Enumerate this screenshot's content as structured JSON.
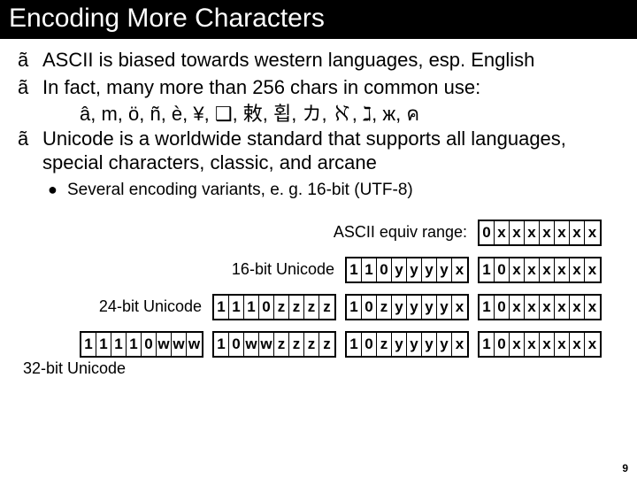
{
  "title": "Encoding More Characters",
  "bullets": {
    "b1": "ASCII is biased towards western languages, esp. English",
    "b2": "In fact, many more than 256 chars in common use:",
    "chars": "â, m, ö, ñ, è, ¥, ❑, 敕, 횝, カ, ℵ, ℷ, ж, ค",
    "b3": "Unicode is a worldwide standard that supports all languages, special characters, classic, and arcane",
    "sub1": "Several encoding variants, e. g. 16-bit (UTF-8)"
  },
  "bullet_glyph": "ã",
  "sub_glyph": "●",
  "labels": {
    "ascii": "ASCII equiv range:",
    "u16": "16-bit Unicode",
    "u24": "24-bit Unicode",
    "u32": "32-bit Unicode"
  },
  "rows": [
    {
      "label_key": "ascii",
      "bytes": [
        [
          "0",
          "x",
          "x",
          "x",
          "x",
          "x",
          "x",
          "x"
        ]
      ]
    },
    {
      "label_key": "u16",
      "bytes": [
        [
          "1",
          "1",
          "0",
          "y",
          "y",
          "y",
          "y",
          "x"
        ],
        [
          "1",
          "0",
          "x",
          "x",
          "x",
          "x",
          "x",
          "x"
        ]
      ]
    },
    {
      "label_key": "u24",
      "bytes": [
        [
          "1",
          "1",
          "1",
          "0",
          "z",
          "z",
          "z",
          "z"
        ],
        [
          "1",
          "0",
          "z",
          "y",
          "y",
          "y",
          "y",
          "x"
        ],
        [
          "1",
          "0",
          "x",
          "x",
          "x",
          "x",
          "x",
          "x"
        ]
      ]
    },
    {
      "label_key": "u32",
      "bytes": [
        [
          "1",
          "1",
          "1",
          "1",
          "0",
          "w",
          "w",
          "w"
        ],
        [
          "1",
          "0",
          "w",
          "w",
          "z",
          "z",
          "z",
          "z"
        ],
        [
          "1",
          "0",
          "z",
          "y",
          "y",
          "y",
          "y",
          "x"
        ],
        [
          "1",
          "0",
          "x",
          "x",
          "x",
          "x",
          "x",
          "x"
        ]
      ]
    }
  ],
  "page_number": "9",
  "colors": {
    "title_bg": "#000000",
    "title_fg": "#ffffff",
    "text": "#000000",
    "border": "#000000"
  }
}
